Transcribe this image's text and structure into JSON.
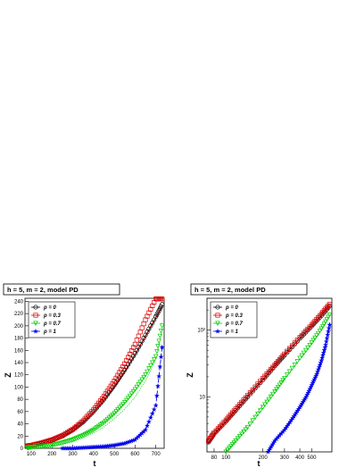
{
  "chart_data": [
    {
      "type": "scatter",
      "title": "h = 5, m = 2, model PD",
      "xlabel": "t",
      "ylabel": "Z",
      "xscale": "linear",
      "yscale": "linear",
      "xlim": [
        70,
        740
      ],
      "ylim": [
        0,
        245
      ],
      "xticks": [
        100,
        200,
        300,
        400,
        500,
        600,
        700
      ],
      "yticks": [
        0,
        20,
        40,
        60,
        80,
        100,
        120,
        140,
        160,
        180,
        200,
        220,
        240
      ],
      "legend_position": "top-left",
      "series": [
        {
          "name": "p = 0",
          "color": "#000000",
          "marker": "circle",
          "x": [
            80,
            100,
            150,
            200,
            250,
            300,
            350,
            400,
            450,
            500,
            550,
            600,
            650,
            700,
            730
          ],
          "y": [
            4,
            5,
            8,
            13,
            20,
            30,
            43,
            60,
            80,
            103,
            128,
            155,
            185,
            215,
            235
          ],
          "fit_y": [
            4,
            5,
            8,
            13,
            20,
            29,
            42,
            58,
            78,
            100,
            125,
            153,
            183,
            213,
            233
          ]
        },
        {
          "name": "p = 0.3",
          "color": "#dd0000",
          "marker": "square",
          "x": [
            80,
            100,
            150,
            200,
            250,
            300,
            350,
            400,
            450,
            500,
            550,
            600,
            650,
            700,
            730
          ],
          "y": [
            4,
            5,
            9,
            14,
            21,
            31,
            45,
            63,
            85,
            110,
            138,
            170,
            210,
            244,
            244
          ],
          "fit_y": [
            4,
            5,
            8,
            13,
            20,
            30,
            43,
            59,
            79,
            101,
            126,
            154,
            184,
            214,
            234
          ]
        },
        {
          "name": "p = 0.7",
          "color": "#00cc00",
          "marker": "triangle-down",
          "x": [
            80,
            100,
            150,
            200,
            250,
            300,
            350,
            400,
            450,
            500,
            550,
            600,
            650,
            700,
            730
          ],
          "y": [
            1,
            2,
            3,
            5,
            9,
            14,
            21,
            30,
            42,
            57,
            75,
            96,
            120,
            150,
            200
          ],
          "fit_y": [
            1,
            1,
            2,
            4,
            7,
            11,
            17,
            25,
            35,
            48,
            64,
            84,
            110,
            145,
            195
          ]
        },
        {
          "name": "p = 1",
          "color": "#0000ee",
          "marker": "star",
          "x": [
            250,
            300,
            350,
            400,
            450,
            500,
            550,
            600,
            650,
            700,
            730
          ],
          "y": [
            0,
            0,
            1,
            2,
            3,
            5,
            8,
            14,
            30,
            70,
            165
          ],
          "fit_y": [
            0,
            0,
            1,
            2,
            3,
            5,
            8,
            14,
            30,
            70,
            165
          ]
        }
      ]
    },
    {
      "type": "scatter",
      "title": "h = 5, m = 2, model PD",
      "xlabel": "t",
      "ylabel": "Z",
      "xscale": "log",
      "yscale": "log",
      "xlim": [
        70,
        730
      ],
      "ylim": [
        1.5,
        300
      ],
      "xticks": [
        80,
        100,
        200,
        300,
        400,
        500
      ],
      "xticklabels": [
        "80",
        "100",
        "200",
        "300",
        "400",
        "500"
      ],
      "yticks": [
        10,
        100
      ],
      "yticklabels": [
        "10",
        "10²"
      ],
      "legend_position": "top-left",
      "series": [
        {
          "name": "p = 0",
          "color": "#000000",
          "marker": "circle",
          "x": [
            72,
            80,
            100,
            120,
            150,
            200,
            250,
            300,
            400,
            500,
            600,
            700
          ],
          "y": [
            2.1,
            2.8,
            4.3,
            6.3,
            10,
            18,
            29,
            42,
            75,
            115,
            165,
            230
          ],
          "fit_y": [
            2.0,
            2.7,
            4.3,
            6.3,
            10,
            18,
            29,
            42,
            75,
            115,
            165,
            230
          ]
        },
        {
          "name": "p = 0.3",
          "color": "#dd0000",
          "marker": "square",
          "x": [
            72,
            80,
            100,
            120,
            150,
            200,
            250,
            300,
            400,
            500,
            600,
            700
          ],
          "y": [
            2.2,
            2.9,
            4.5,
            6.6,
            10.5,
            19,
            30,
            44,
            78,
            120,
            175,
            245
          ],
          "fit_y": [
            2.1,
            2.8,
            4.4,
            6.4,
            10.2,
            18.5,
            29.5,
            43,
            76,
            118,
            170,
            240
          ]
        },
        {
          "name": "p = 0.7",
          "color": "#00cc00",
          "marker": "triangle-down",
          "x": [
            100,
            120,
            150,
            200,
            250,
            300,
            400,
            500,
            600,
            700
          ],
          "y": [
            1.5,
            2.2,
            3.5,
            7,
            12,
            19,
            38,
            65,
            105,
            170
          ],
          "fit_y": [
            1.5,
            2.3,
            3.8,
            7.5,
            12.5,
            19,
            36,
            62,
            100,
            165
          ]
        },
        {
          "name": "p = 1",
          "color": "#0000ee",
          "marker": "star",
          "x": [
            220,
            250,
            300,
            350,
            400,
            450,
            500,
            550,
            600,
            650,
            700
          ],
          "y": [
            1.5,
            2.2,
            3.2,
            4.8,
            7,
            10,
            15,
            22,
            35,
            60,
            120
          ],
          "fit_y": [
            1.5,
            2.2,
            3.2,
            4.8,
            7,
            10,
            15,
            22,
            35,
            60,
            120
          ]
        }
      ]
    }
  ]
}
